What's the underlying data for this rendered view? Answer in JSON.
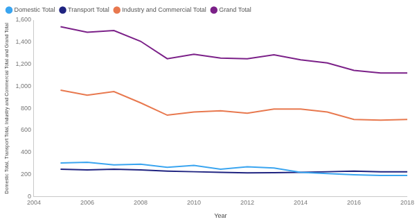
{
  "chart_data": {
    "type": "line",
    "x_label": "Year",
    "y_label": "Domestic Total, Transport Total, Industry and Commercial Total and Grand Total",
    "x": [
      2005,
      2006,
      2007,
      2008,
      2009,
      2010,
      2011,
      2012,
      2013,
      2014,
      2015,
      2016,
      2017,
      2018
    ],
    "series": [
      {
        "name": "Domestic Total",
        "color": "#3aa5f0",
        "values": [
          304,
          310,
          287,
          293,
          265,
          282,
          248,
          270,
          259,
          220,
          208,
          197,
          191,
          191
        ]
      },
      {
        "name": "Transport Total",
        "color": "#1f2380",
        "values": [
          248,
          242,
          248,
          242,
          231,
          225,
          220,
          215,
          217,
          220,
          225,
          231,
          225,
          225
        ]
      },
      {
        "name": "Industry and Commercial Total",
        "color": "#e8784e",
        "values": [
          965,
          920,
          952,
          850,
          738,
          766,
          777,
          755,
          794,
          794,
          766,
          699,
          693,
          699
        ]
      },
      {
        "name": "Grand Total",
        "color": "#7b2088",
        "values": [
          1540,
          1490,
          1505,
          1408,
          1250,
          1290,
          1256,
          1250,
          1285,
          1240,
          1211,
          1144,
          1121,
          1121
        ]
      }
    ],
    "xlim": [
      2004,
      2018
    ],
    "xticks": [
      2004,
      2006,
      2008,
      2010,
      2012,
      2014,
      2016,
      2018
    ],
    "ylim": [
      0,
      1600
    ],
    "yticks": [
      0,
      200,
      400,
      600,
      800,
      {
        "value": 1000,
        "label": "1,000"
      },
      {
        "value": 1200,
        "label": "1,200"
      },
      {
        "value": 1400,
        "label": "1,400"
      },
      {
        "value": 1600,
        "label": "1,600"
      }
    ],
    "grid": false,
    "legend": "top-left"
  }
}
